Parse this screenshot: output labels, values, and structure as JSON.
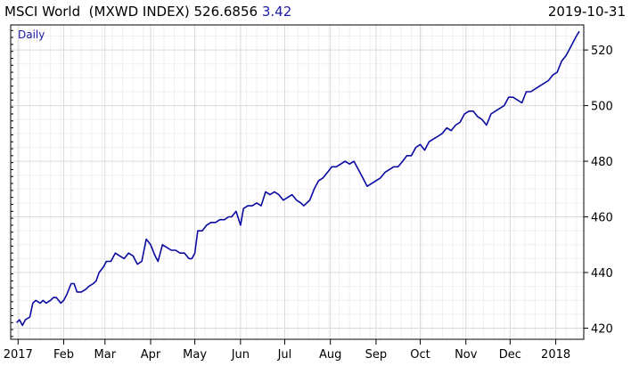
{
  "header": {
    "name": "MSCI World",
    "ticker": "(MXWD INDEX)",
    "last": "526.6856",
    "change": "3.42",
    "date": "2019-10-31"
  },
  "colors": {
    "line": "#0a0aa0",
    "grid": "#d9d9d9",
    "frame": "#000000",
    "period": "#1a1aa6"
  },
  "chart_data": {
    "type": "line",
    "period": "Daily",
    "ylim": [
      416,
      529
    ],
    "yticks": [
      420,
      440,
      460,
      480,
      500,
      520
    ],
    "xticks": [
      {
        "label": "2017",
        "x": "2017-01-01"
      },
      {
        "label": "Feb",
        "x": "2017-02-01"
      },
      {
        "label": "Mar",
        "x": "2017-03-01"
      },
      {
        "label": "Apr",
        "x": "2017-04-01"
      },
      {
        "label": "May",
        "x": "2017-05-01"
      },
      {
        "label": "Jun",
        "x": "2017-06-01"
      },
      {
        "label": "Jul",
        "x": "2017-07-01"
      },
      {
        "label": "Aug",
        "x": "2017-08-01"
      },
      {
        "label": "Sep",
        "x": "2017-09-01"
      },
      {
        "label": "Oct",
        "x": "2017-10-01"
      },
      {
        "label": "Nov",
        "x": "2017-11-01"
      },
      {
        "label": "Dec",
        "x": "2017-12-01"
      },
      {
        "label": "2018",
        "x": "2018-01-01"
      }
    ],
    "series": [
      {
        "values": [
          [
            "2016-12-31",
            422
          ],
          [
            "2017-01-02",
            423
          ],
          [
            "2017-01-04",
            421
          ],
          [
            "2017-01-06",
            423
          ],
          [
            "2017-01-09",
            424
          ],
          [
            "2017-01-11",
            429
          ],
          [
            "2017-01-13",
            430
          ],
          [
            "2017-01-16",
            429
          ],
          [
            "2017-01-18",
            430
          ],
          [
            "2017-01-20",
            429
          ],
          [
            "2017-01-23",
            430
          ],
          [
            "2017-01-25",
            431
          ],
          [
            "2017-01-27",
            431
          ],
          [
            "2017-01-30",
            429
          ],
          [
            "2017-02-01",
            430
          ],
          [
            "2017-02-03",
            432
          ],
          [
            "2017-02-06",
            436
          ],
          [
            "2017-02-08",
            436
          ],
          [
            "2017-02-10",
            433
          ],
          [
            "2017-02-13",
            433
          ],
          [
            "2017-02-16",
            434
          ],
          [
            "2017-02-18",
            435
          ],
          [
            "2017-02-21",
            436
          ],
          [
            "2017-02-23",
            437
          ],
          [
            "2017-02-25",
            440
          ],
          [
            "2017-02-28",
            442
          ],
          [
            "2017-03-02",
            444
          ],
          [
            "2017-03-05",
            444
          ],
          [
            "2017-03-08",
            447
          ],
          [
            "2017-03-11",
            446
          ],
          [
            "2017-03-14",
            445
          ],
          [
            "2017-03-17",
            447
          ],
          [
            "2017-03-20",
            446
          ],
          [
            "2017-03-23",
            443
          ],
          [
            "2017-03-26",
            444
          ],
          [
            "2017-03-29",
            452
          ],
          [
            "2017-04-01",
            450
          ],
          [
            "2017-04-04",
            446
          ],
          [
            "2017-04-06",
            444
          ],
          [
            "2017-04-09",
            450
          ],
          [
            "2017-04-12",
            449
          ],
          [
            "2017-04-15",
            448
          ],
          [
            "2017-04-18",
            448
          ],
          [
            "2017-04-21",
            447
          ],
          [
            "2017-04-24",
            447
          ],
          [
            "2017-04-27",
            445
          ],
          [
            "2017-04-29",
            445
          ],
          [
            "2017-05-01",
            447
          ],
          [
            "2017-05-03",
            455
          ],
          [
            "2017-05-06",
            455
          ],
          [
            "2017-05-09",
            457
          ],
          [
            "2017-05-12",
            458
          ],
          [
            "2017-05-15",
            458
          ],
          [
            "2017-05-18",
            459
          ],
          [
            "2017-05-21",
            459
          ],
          [
            "2017-05-24",
            460
          ],
          [
            "2017-05-26",
            460
          ],
          [
            "2017-05-29",
            462
          ],
          [
            "2017-06-01",
            457
          ],
          [
            "2017-06-03",
            463
          ],
          [
            "2017-06-06",
            464
          ],
          [
            "2017-06-09",
            464
          ],
          [
            "2017-06-12",
            465
          ],
          [
            "2017-06-15",
            464
          ],
          [
            "2017-06-18",
            469
          ],
          [
            "2017-06-21",
            468
          ],
          [
            "2017-06-24",
            469
          ],
          [
            "2017-06-27",
            468
          ],
          [
            "2017-06-30",
            466
          ],
          [
            "2017-07-03",
            467
          ],
          [
            "2017-07-06",
            468
          ],
          [
            "2017-07-09",
            466
          ],
          [
            "2017-07-12",
            465
          ],
          [
            "2017-07-14",
            464
          ],
          [
            "2017-07-16",
            465
          ],
          [
            "2017-07-18",
            466
          ],
          [
            "2017-07-21",
            470
          ],
          [
            "2017-07-24",
            473
          ],
          [
            "2017-07-27",
            474
          ],
          [
            "2017-07-30",
            476
          ],
          [
            "2017-08-02",
            478
          ],
          [
            "2017-08-05",
            478
          ],
          [
            "2017-08-08",
            479
          ],
          [
            "2017-08-11",
            480
          ],
          [
            "2017-08-14",
            479
          ],
          [
            "2017-08-17",
            480
          ],
          [
            "2017-08-20",
            477
          ],
          [
            "2017-08-23",
            474
          ],
          [
            "2017-08-26",
            471
          ],
          [
            "2017-08-29",
            472
          ],
          [
            "2017-09-01",
            473
          ],
          [
            "2017-09-04",
            474
          ],
          [
            "2017-09-07",
            476
          ],
          [
            "2017-09-10",
            477
          ],
          [
            "2017-09-13",
            478
          ],
          [
            "2017-09-16",
            478
          ],
          [
            "2017-09-19",
            480
          ],
          [
            "2017-09-22",
            482
          ],
          [
            "2017-09-25",
            482
          ],
          [
            "2017-09-28",
            485
          ],
          [
            "2017-10-01",
            486
          ],
          [
            "2017-10-04",
            484
          ],
          [
            "2017-10-07",
            487
          ],
          [
            "2017-10-10",
            488
          ],
          [
            "2017-10-13",
            489
          ],
          [
            "2017-10-16",
            490
          ],
          [
            "2017-10-19",
            492
          ],
          [
            "2017-10-22",
            491
          ],
          [
            "2017-10-25",
            493
          ],
          [
            "2017-10-28",
            494
          ],
          [
            "2017-10-31",
            497
          ],
          [
            "2017-11-03",
            498
          ],
          [
            "2017-11-06",
            498
          ],
          [
            "2017-11-09",
            496
          ],
          [
            "2017-11-12",
            495
          ],
          [
            "2017-11-15",
            493
          ],
          [
            "2017-11-18",
            497
          ],
          [
            "2017-11-21",
            498
          ],
          [
            "2017-11-24",
            499
          ],
          [
            "2017-11-27",
            500
          ],
          [
            "2017-11-30",
            503
          ],
          [
            "2017-12-03",
            503
          ],
          [
            "2017-12-06",
            502
          ],
          [
            "2017-12-09",
            501
          ],
          [
            "2017-12-12",
            505
          ],
          [
            "2017-12-15",
            505
          ],
          [
            "2017-12-18",
            506
          ],
          [
            "2017-12-21",
            507
          ],
          [
            "2017-12-24",
            508
          ],
          [
            "2017-12-27",
            509
          ],
          [
            "2017-12-30",
            511
          ],
          [
            "2018-01-02",
            512
          ],
          [
            "2018-01-05",
            516
          ],
          [
            "2018-01-08",
            518
          ],
          [
            "2018-01-10",
            520
          ],
          [
            "2018-01-12",
            522
          ],
          [
            "2018-01-15",
            525
          ],
          [
            "2018-01-17",
            526.7
          ]
        ]
      }
    ]
  }
}
